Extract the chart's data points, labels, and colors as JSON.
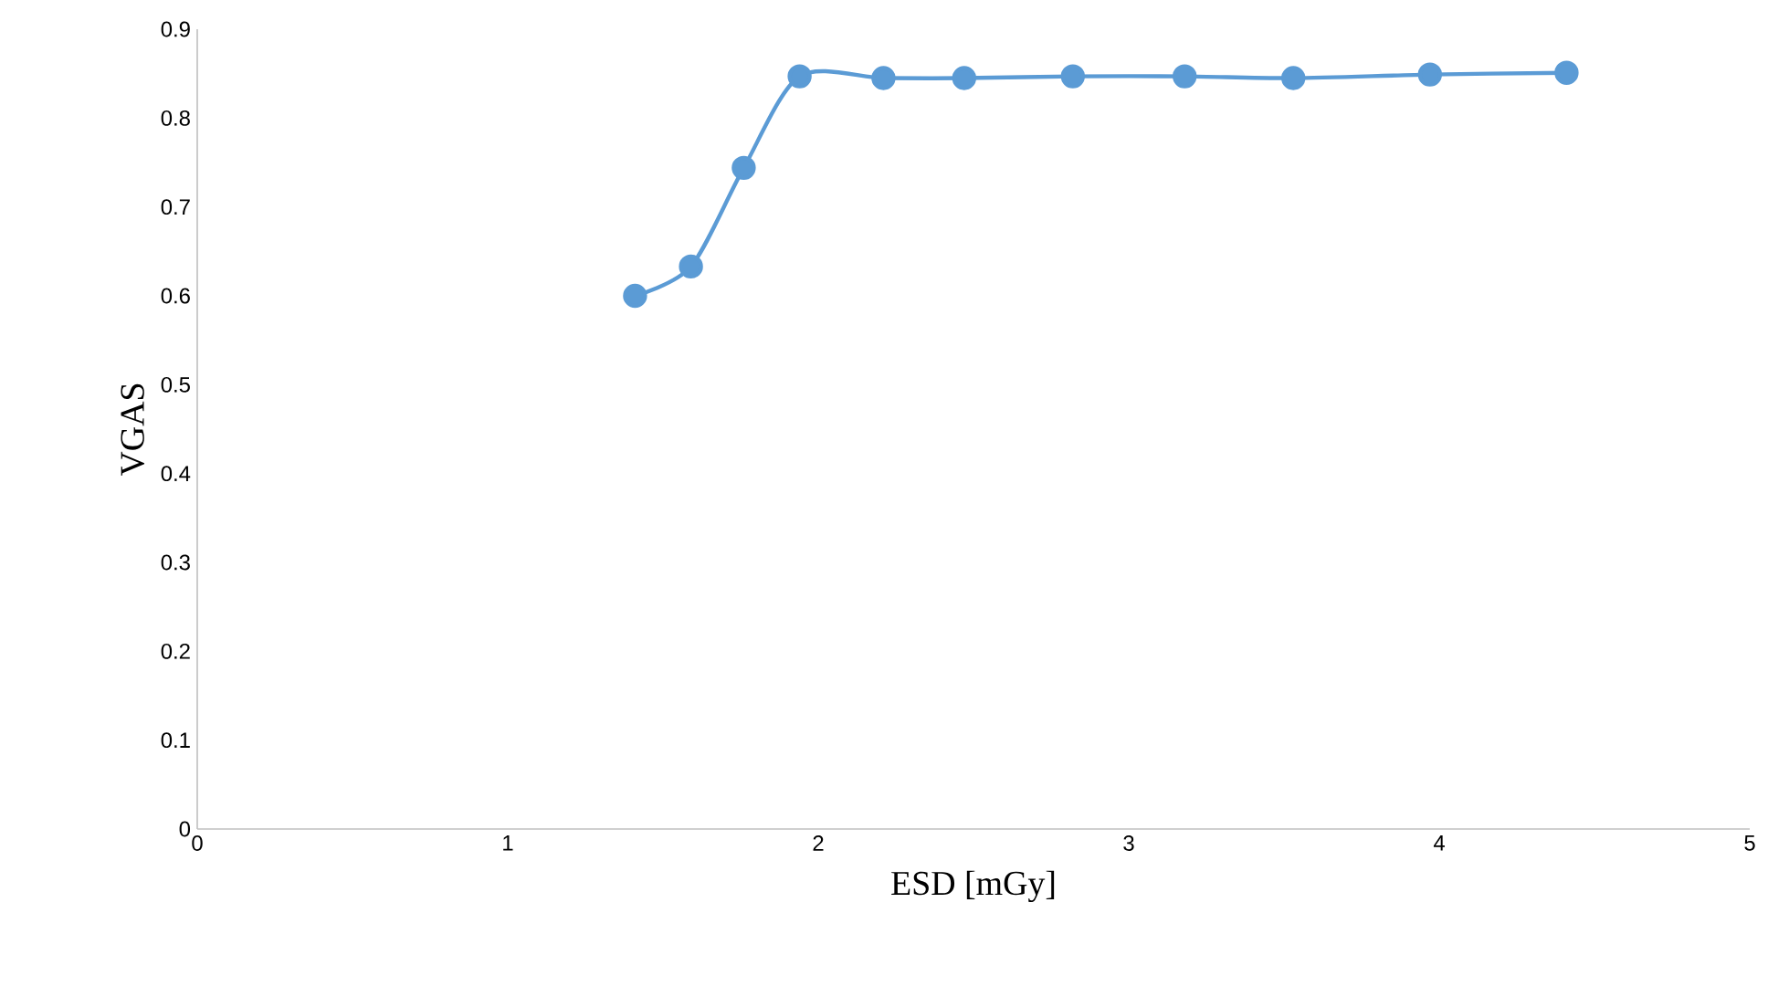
{
  "chart_data": {
    "type": "line",
    "xlabel": "ESD [mGy]",
    "ylabel": "VGAS",
    "x": [
      1.41,
      1.59,
      1.76,
      1.94,
      2.21,
      2.47,
      2.82,
      3.18,
      3.53,
      3.97,
      4.41
    ],
    "values": [
      0.6,
      0.633,
      0.744,
      0.847,
      0.845,
      0.845,
      0.847,
      0.847,
      0.845,
      0.849,
      0.851
    ],
    "color": "#5b9bd5",
    "marker": "circle",
    "line_style": "solid",
    "xlim": [
      0,
      5
    ],
    "ylim": [
      0,
      0.9
    ],
    "xticks": [
      0,
      1,
      2,
      3,
      4,
      5
    ],
    "yticks": [
      0,
      0.1,
      0.2,
      0.3,
      0.4,
      0.5,
      0.6,
      0.7,
      0.8,
      0.9
    ]
  }
}
